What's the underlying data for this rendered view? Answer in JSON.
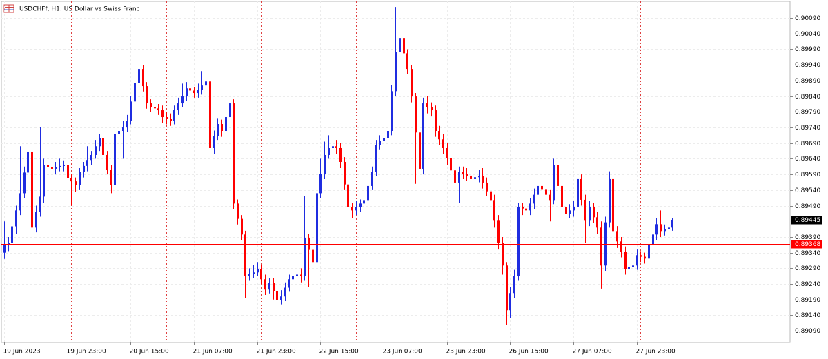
{
  "chart_data": {
    "type": "candlestick",
    "title": "USDCHFf, H1:  US Dollar vs Swiss Franc",
    "up_color": "#1f2de0",
    "down_color": "#ff0000",
    "grid": true,
    "open": [
      0.8934,
      0.89365,
      0.89372,
      0.89424,
      0.89475,
      0.8953,
      0.89596,
      0.89663,
      0.8942,
      0.8947,
      0.89519,
      0.89619,
      0.89614,
      0.89608,
      0.89614,
      0.89617,
      0.89619,
      0.89579,
      0.89568,
      0.89557,
      0.89597,
      0.89617,
      0.89636,
      0.89652,
      0.8968,
      0.89707,
      0.89652,
      0.89605,
      0.89557,
      0.89718,
      0.89729,
      0.8974,
      0.89762,
      0.89823,
      0.89883,
      0.89927,
      0.89872,
      0.89817,
      0.89806,
      0.89801,
      0.89795,
      0.89773,
      0.89768,
      0.89762,
      0.89795,
      0.89817,
      0.89839,
      0.89865,
      0.89858,
      0.8985,
      0.89861,
      0.89874,
      0.89887,
      0.89674,
      0.89713,
      0.89751,
      0.89729,
      0.89773,
      0.89817,
      0.89497,
      0.89448,
      0.89398,
      0.89266,
      0.89272,
      0.89277,
      0.89288,
      0.89255,
      0.89222,
      0.89244,
      0.89217,
      0.89189,
      0.892,
      0.89228,
      0.89255,
      0.89266,
      0.8927,
      0.89266,
      0.89387,
      0.89349,
      0.8931,
      0.8953,
      0.89591,
      0.89652,
      0.89674,
      0.8968,
      0.89674,
      0.8963,
      0.89558,
      0.89486,
      0.89475,
      0.89486,
      0.89497,
      0.89508,
      0.89553,
      0.89597,
      0.89685,
      0.89696,
      0.89707,
      0.89729,
      0.89856,
      0.89982,
      0.90026,
      0.89977,
      0.89927,
      0.89839,
      0.89724,
      0.89608,
      0.89817,
      0.89806,
      0.89795,
      0.89729,
      0.89702,
      0.89674,
      0.89641,
      0.89603,
      0.89564,
      0.89597,
      0.89592,
      0.89586,
      0.89575,
      0.89581,
      0.89586,
      0.89564,
      0.89536,
      0.89508,
      0.89442,
      0.89371,
      0.89299,
      0.89156,
      0.89211,
      0.89266,
      0.89486,
      0.89481,
      0.89475,
      0.89497,
      0.89525,
      0.89553,
      0.89541,
      0.89525,
      0.89508,
      0.89619,
      0.89553,
      0.89486,
      0.89464,
      0.89475,
      0.89486,
      0.89575,
      0.89509,
      0.89442,
      0.89486,
      0.89453,
      0.8942,
      0.89299,
      0.89437,
      0.89575,
      0.89409,
      0.89376,
      0.89343,
      0.89288,
      0.89294,
      0.89299,
      0.89332,
      0.89327,
      0.89321,
      0.89365,
      0.89398,
      0.89431,
      0.89409,
      0.89415,
      0.8942
    ],
    "high": [
      0.8944,
      0.8939,
      0.8944,
      0.8949,
      0.8968,
      0.89615,
      0.8968,
      0.89675,
      0.8949,
      0.8974,
      0.8964,
      0.8965,
      0.8963,
      0.8963,
      0.8964,
      0.89635,
      0.8963,
      0.8959,
      0.8958,
      0.8961,
      0.8963,
      0.8968,
      0.89665,
      0.897,
      0.8972,
      0.8981,
      0.89665,
      0.8962,
      0.89735,
      0.89745,
      0.8976,
      0.8978,
      0.8984,
      0.8997,
      0.89955,
      0.8994,
      0.89885,
      0.8983,
      0.8982,
      0.89815,
      0.8981,
      0.8979,
      0.89785,
      0.8981,
      0.89835,
      0.8988,
      0.89885,
      0.8988,
      0.8987,
      0.8988,
      0.8992,
      0.899,
      0.89895,
      0.8973,
      0.8977,
      0.89765,
      0.89965,
      0.8989,
      0.8983,
      0.8951,
      0.8946,
      0.8941,
      0.8929,
      0.893,
      0.8931,
      0.893,
      0.8927,
      0.8926,
      0.8926,
      0.89235,
      0.8922,
      0.89245,
      0.8927,
      0.8933,
      0.8954,
      0.8929,
      0.8952,
      0.894,
      0.8937,
      0.89545,
      0.8964,
      0.89695,
      0.89715,
      0.89695,
      0.897,
      0.8969,
      0.89645,
      0.8957,
      0.895,
      0.89505,
      0.8951,
      0.89525,
      0.8957,
      0.89615,
      0.897,
      0.89715,
      0.8974,
      0.898,
      0.89875,
      0.90125,
      0.9007,
      0.9004,
      0.8999,
      0.8994,
      0.8985,
      0.8974,
      0.89835,
      0.8984,
      0.8982,
      0.8981,
      0.89745,
      0.8972,
      0.8969,
      0.89655,
      0.8962,
      0.89615,
      0.89615,
      0.8961,
      0.896,
      0.896,
      0.89605,
      0.8961,
      0.8958,
      0.8955,
      0.89525,
      0.8946,
      0.8939,
      0.8931,
      0.8923,
      0.89285,
      0.895,
      0.895,
      0.89495,
      0.89515,
      0.89545,
      0.8957,
      0.89565,
      0.8956,
      0.8954,
      0.8964,
      0.89635,
      0.8957,
      0.895,
      0.89495,
      0.89505,
      0.89595,
      0.8959,
      0.89525,
      0.89505,
      0.895,
      0.8947,
      0.8944,
      0.89455,
      0.896,
      0.8959,
      0.89425,
      0.8939,
      0.8936,
      0.8931,
      0.89315,
      0.8935,
      0.89345,
      0.8934,
      0.89385,
      0.89415,
      0.8945,
      0.89475,
      0.8943,
      0.89435,
      0.8945
    ],
    "low": [
      0.8932,
      0.89345,
      0.89315,
      0.894,
      0.8946,
      0.89515,
      0.8958,
      0.894,
      0.89405,
      0.89455,
      0.895,
      0.89595,
      0.8959,
      0.8959,
      0.896,
      0.896,
      0.8956,
      0.8949,
      0.89535,
      0.8954,
      0.8958,
      0.896,
      0.8962,
      0.8964,
      0.89665,
      0.8964,
      0.8959,
      0.8953,
      0.89545,
      0.897,
      0.8964,
      0.89725,
      0.8975,
      0.8981,
      0.8987,
      0.89855,
      0.898,
      0.8979,
      0.89785,
      0.8978,
      0.89755,
      0.8975,
      0.89745,
      0.8975,
      0.8978,
      0.89805,
      0.89825,
      0.8984,
      0.89835,
      0.89835,
      0.89845,
      0.8986,
      0.8965,
      0.89655,
      0.897,
      0.8971,
      0.89715,
      0.8976,
      0.8948,
      0.8943,
      0.8938,
      0.89195,
      0.8925,
      0.8926,
      0.89265,
      0.8924,
      0.89205,
      0.8921,
      0.8919,
      0.89175,
      0.89175,
      0.89185,
      0.89215,
      0.892,
      0.8906,
      0.89245,
      0.8925,
      0.8923,
      0.892,
      0.8929,
      0.89515,
      0.89575,
      0.8964,
      0.8966,
      0.89655,
      0.8961,
      0.8954,
      0.8947,
      0.8945,
      0.8946,
      0.8947,
      0.89485,
      0.89495,
      0.8954,
      0.89585,
      0.8967,
      0.8968,
      0.8969,
      0.89715,
      0.8984,
      0.8996,
      0.8996,
      0.8991,
      0.8982,
      0.8956,
      0.8944,
      0.8959,
      0.89785,
      0.89775,
      0.8971,
      0.89685,
      0.89655,
      0.8962,
      0.89585,
      0.89545,
      0.895,
      0.89575,
      0.8957,
      0.89555,
      0.8956,
      0.89565,
      0.89545,
      0.8952,
      0.8949,
      0.8942,
      0.8935,
      0.8927,
      0.8911,
      0.8913,
      0.89195,
      0.8925,
      0.8946,
      0.89455,
      0.8946,
      0.8948,
      0.89505,
      0.8952,
      0.89505,
      0.8944,
      0.89495,
      0.89535,
      0.8947,
      0.89445,
      0.8945,
      0.89455,
      0.8947,
      0.8949,
      0.8937,
      0.89425,
      0.89435,
      0.894,
      0.89225,
      0.8928,
      0.8942,
      0.8939,
      0.89355,
      0.89325,
      0.8927,
      0.89275,
      0.8928,
      0.89285,
      0.8931,
      0.89305,
      0.89305,
      0.8935,
      0.8938,
      0.8939,
      0.89395,
      0.8937,
      0.8941
    ],
    "close": [
      0.89365,
      0.89372,
      0.89424,
      0.89475,
      0.8953,
      0.89596,
      0.89663,
      0.8942,
      0.8947,
      0.89519,
      0.89619,
      0.89614,
      0.89608,
      0.89614,
      0.89617,
      0.89619,
      0.89579,
      0.89568,
      0.89557,
      0.89597,
      0.89617,
      0.89636,
      0.89652,
      0.8968,
      0.89707,
      0.89652,
      0.89605,
      0.89557,
      0.89718,
      0.89729,
      0.8974,
      0.89762,
      0.89823,
      0.89883,
      0.89927,
      0.89872,
      0.89817,
      0.89806,
      0.89801,
      0.89795,
      0.89773,
      0.89768,
      0.89762,
      0.89795,
      0.89817,
      0.89839,
      0.89865,
      0.89858,
      0.8985,
      0.89861,
      0.89874,
      0.89887,
      0.89674,
      0.89713,
      0.89751,
      0.89729,
      0.89773,
      0.89817,
      0.89497,
      0.89448,
      0.89398,
      0.89266,
      0.89272,
      0.89277,
      0.89288,
      0.89255,
      0.89222,
      0.89244,
      0.89217,
      0.89189,
      0.892,
      0.89228,
      0.89255,
      0.89266,
      0.8927,
      0.89266,
      0.89387,
      0.89349,
      0.8931,
      0.8953,
      0.89591,
      0.89652,
      0.89674,
      0.8968,
      0.89674,
      0.8963,
      0.89558,
      0.89486,
      0.89475,
      0.89486,
      0.89497,
      0.89508,
      0.89553,
      0.89597,
      0.89685,
      0.89696,
      0.89707,
      0.89729,
      0.89856,
      0.89982,
      0.90026,
      0.89977,
      0.89927,
      0.89839,
      0.89724,
      0.89608,
      0.89817,
      0.89806,
      0.89795,
      0.89729,
      0.89702,
      0.89674,
      0.89641,
      0.89603,
      0.89564,
      0.89597,
      0.89592,
      0.89586,
      0.89575,
      0.89581,
      0.89586,
      0.89564,
      0.89536,
      0.89508,
      0.89442,
      0.89371,
      0.89299,
      0.89156,
      0.89211,
      0.89266,
      0.89486,
      0.89481,
      0.89475,
      0.89497,
      0.89525,
      0.89553,
      0.89541,
      0.89525,
      0.89508,
      0.89619,
      0.89553,
      0.89486,
      0.89464,
      0.89475,
      0.89486,
      0.89575,
      0.89509,
      0.89442,
      0.89486,
      0.89453,
      0.8942,
      0.89299,
      0.89437,
      0.89575,
      0.89409,
      0.89376,
      0.89343,
      0.89288,
      0.89294,
      0.89299,
      0.89332,
      0.89327,
      0.89321,
      0.89365,
      0.89398,
      0.89431,
      0.89409,
      0.89415,
      0.8942,
      0.89445
    ],
    "xlim": [
      -0.7,
      198.8
    ],
    "xticks": [
      {
        "value": 0,
        "label": "19 Jun 2023"
      },
      {
        "value": 16,
        "label": "19 Jun 23:00"
      },
      {
        "value": 32,
        "label": "20 Jun 15:00"
      },
      {
        "value": 48,
        "label": "21 Jun 07:00"
      },
      {
        "value": 64,
        "label": "21 Jun 23:00"
      },
      {
        "value": 80,
        "label": "22 Jun 15:00"
      },
      {
        "value": 96,
        "label": "23 Jun 07:00"
      },
      {
        "value": 112,
        "label": "23 Jun 23:00"
      },
      {
        "value": 128,
        "label": "26 Jun 15:00"
      },
      {
        "value": 144,
        "label": "27 Jun 07:00"
      },
      {
        "value": 160,
        "label": "27 Jun 23:00"
      }
    ],
    "period_separators": [
      17,
      41,
      65,
      89,
      113,
      137,
      161,
      185
    ],
    "ylim": [
      0.89053,
      0.90143
    ],
    "yticks": [
      {
        "value": 0.9009,
        "label": "0.90090"
      },
      {
        "value": 0.9004,
        "label": "0.90040"
      },
      {
        "value": 0.8999,
        "label": "0.89990"
      },
      {
        "value": 0.8994,
        "label": "0.89940"
      },
      {
        "value": 0.8989,
        "label": "0.89890"
      },
      {
        "value": 0.8984,
        "label": "0.89840"
      },
      {
        "value": 0.8979,
        "label": "0.89790"
      },
      {
        "value": 0.8974,
        "label": "0.89740"
      },
      {
        "value": 0.8969,
        "label": "0.89690"
      },
      {
        "value": 0.8964,
        "label": "0.89640"
      },
      {
        "value": 0.8959,
        "label": "0.89590"
      },
      {
        "value": 0.8954,
        "label": "0.89540"
      },
      {
        "value": 0.8949,
        "label": "0.89490"
      },
      {
        "value": 0.8939,
        "label": "0.89390"
      },
      {
        "value": 0.8934,
        "label": "0.89340"
      },
      {
        "value": 0.8929,
        "label": "0.89290"
      },
      {
        "value": 0.8924,
        "label": "0.89240"
      },
      {
        "value": 0.8919,
        "label": "0.89190"
      },
      {
        "value": 0.8914,
        "label": "0.89140"
      },
      {
        "value": 0.8909,
        "label": "0.89090"
      }
    ],
    "price_lines": [
      {
        "value": 0.89445,
        "color": "#000000"
      },
      {
        "value": 0.89368,
        "color": "#ff0000"
      }
    ]
  }
}
